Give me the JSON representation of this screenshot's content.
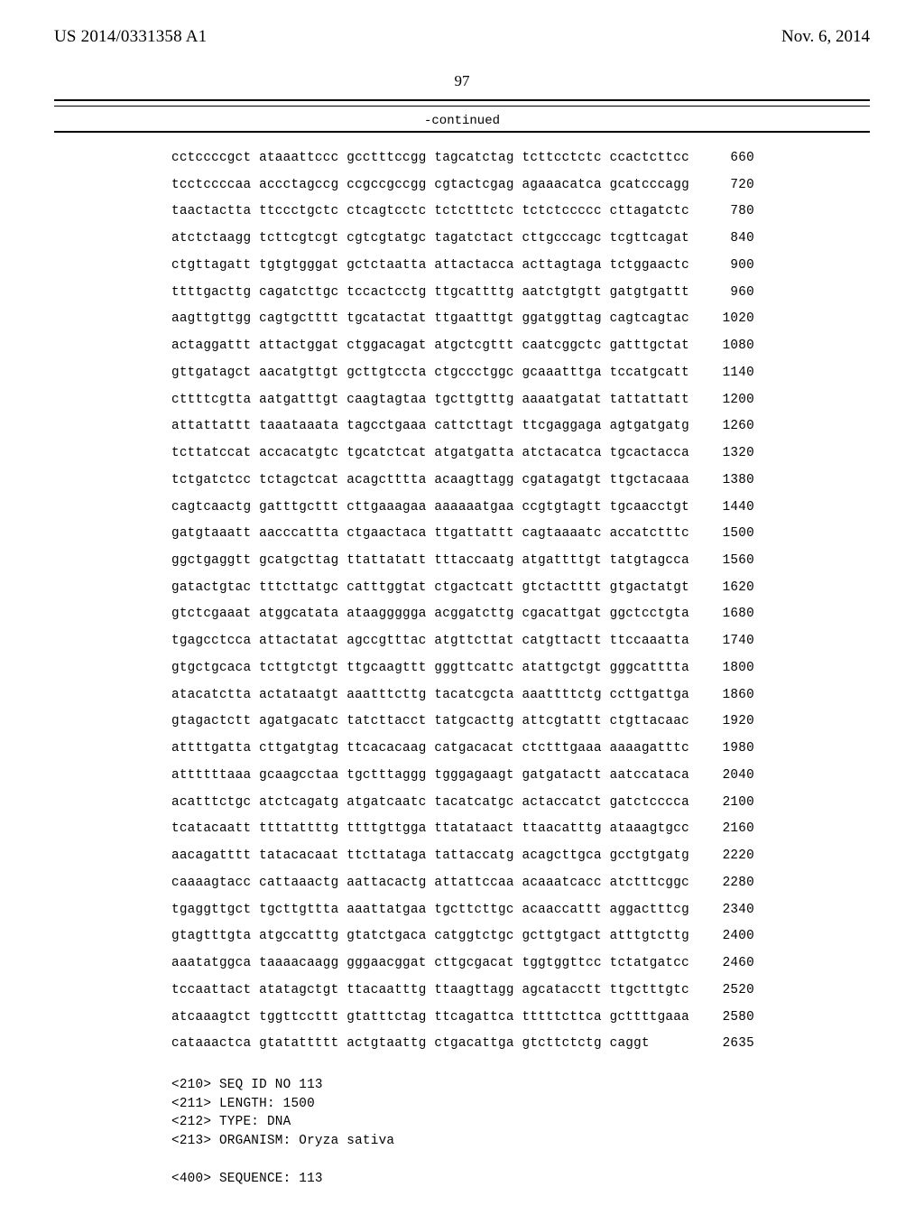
{
  "header": {
    "pub_no": "US 2014/0331358 A1",
    "pub_date": "Nov. 6, 2014",
    "page_number": "97",
    "continued": "-continued"
  },
  "sequence": {
    "rows": [
      {
        "g": [
          "cctccccgct",
          "ataaattccc",
          "gcctttccgg",
          "tagcatctag",
          "tcttcctctc",
          "ccactcttcc"
        ],
        "n": 660
      },
      {
        "g": [
          "tcctccccaa",
          "accctagccg",
          "ccgccgccgg",
          "cgtactcgag",
          "agaaacatca",
          "gcatcccagg"
        ],
        "n": 720
      },
      {
        "g": [
          "taactactta",
          "ttccctgctc",
          "ctcagtcctc",
          "tctctttctc",
          "tctctccccc",
          "cttagatctc"
        ],
        "n": 780
      },
      {
        "g": [
          "atctctaagg",
          "tcttcgtcgt",
          "cgtcgtatgc",
          "tagatctact",
          "cttgcccagc",
          "tcgttcagat"
        ],
        "n": 840
      },
      {
        "g": [
          "ctgttagatt",
          "tgtgtgggat",
          "gctctaatta",
          "attactacca",
          "acttagtaga",
          "tctggaactc"
        ],
        "n": 900
      },
      {
        "g": [
          "ttttgacttg",
          "cagatcttgc",
          "tccactcctg",
          "ttgcattttg",
          "aatctgtgtt",
          "gatgtgattt"
        ],
        "n": 960
      },
      {
        "g": [
          "aagttgttgg",
          "cagtgctttt",
          "tgcatactat",
          "ttgaatttgt",
          "ggatggttag",
          "cagtcagtac"
        ],
        "n": 1020
      },
      {
        "g": [
          "actaggattt",
          "attactggat",
          "ctggacagat",
          "atgctcgttt",
          "caatcggctc",
          "gatttgctat"
        ],
        "n": 1080
      },
      {
        "g": [
          "gttgatagct",
          "aacatgttgt",
          "gcttgtccta",
          "ctgccctggc",
          "gcaaatttga",
          "tccatgcatt"
        ],
        "n": 1140
      },
      {
        "g": [
          "cttttcgtta",
          "aatgatttgt",
          "caagtagtaa",
          "tgcttgtttg",
          "aaaatgatat",
          "tattattatt"
        ],
        "n": 1200
      },
      {
        "g": [
          "attattattt",
          "taaataaata",
          "tagcctgaaa",
          "cattcttagt",
          "ttcgaggaga",
          "agtgatgatg"
        ],
        "n": 1260
      },
      {
        "g": [
          "tcttatccat",
          "accacatgtc",
          "tgcatctcat",
          "atgatgatta",
          "atctacatca",
          "tgcactacca"
        ],
        "n": 1320
      },
      {
        "g": [
          "tctgatctcc",
          "tctagctcat",
          "acagctttta",
          "acaagttagg",
          "cgatagatgt",
          "ttgctacaaa"
        ],
        "n": 1380
      },
      {
        "g": [
          "cagtcaactg",
          "gatttgcttt",
          "cttgaaagaa",
          "aaaaaatgaa",
          "ccgtgtagtt",
          "tgcaacctgt"
        ],
        "n": 1440
      },
      {
        "g": [
          "gatgtaaatt",
          "aacccattta",
          "ctgaactaca",
          "ttgattattt",
          "cagtaaaatc",
          "accatctttc"
        ],
        "n": 1500
      },
      {
        "g": [
          "ggctgaggtt",
          "gcatgcttag",
          "ttattatatt",
          "tttaccaatg",
          "atgattttgt",
          "tatgtagcca"
        ],
        "n": 1560
      },
      {
        "g": [
          "gatactgtac",
          "tttcttatgc",
          "catttggtat",
          "ctgactcatt",
          "gtctactttt",
          "gtgactatgt"
        ],
        "n": 1620
      },
      {
        "g": [
          "gtctcgaaat",
          "atggcatata",
          "ataaggggga",
          "acggatcttg",
          "cgacattgat",
          "ggctcctgta"
        ],
        "n": 1680
      },
      {
        "g": [
          "tgagcctcca",
          "attactatat",
          "agccgtttac",
          "atgttcttat",
          "catgttactt",
          "ttccaaatta"
        ],
        "n": 1740
      },
      {
        "g": [
          "gtgctgcaca",
          "tcttgtctgt",
          "ttgcaagttt",
          "gggttcattc",
          "atattgctgt",
          "gggcatttta"
        ],
        "n": 1800
      },
      {
        "g": [
          "atacatctta",
          "actataatgt",
          "aaatttcttg",
          "tacatcgcta",
          "aaattttctg",
          "ccttgattga"
        ],
        "n": 1860
      },
      {
        "g": [
          "gtagactctt",
          "agatgacatc",
          "tatcttacct",
          "tatgcacttg",
          "attcgtattt",
          "ctgttacaac"
        ],
        "n": 1920
      },
      {
        "g": [
          "attttgatta",
          "cttgatgtag",
          "ttcacacaag",
          "catgacacat",
          "ctctttgaaa",
          "aaaagatttc"
        ],
        "n": 1980
      },
      {
        "g": [
          "attttttaaa",
          "gcaagcctaa",
          "tgctttaggg",
          "tgggagaagt",
          "gatgatactt",
          "aatccataca"
        ],
        "n": 2040
      },
      {
        "g": [
          "acatttctgc",
          "atctcagatg",
          "atgatcaatc",
          "tacatcatgc",
          "actaccatct",
          "gatctcccca"
        ],
        "n": 2100
      },
      {
        "g": [
          "tcatacaatt",
          "ttttattttg",
          "ttttgttgga",
          "ttatataact",
          "ttaacatttg",
          "ataaagtgcc"
        ],
        "n": 2160
      },
      {
        "g": [
          "aacagatttt",
          "tatacacaat",
          "ttcttataga",
          "tattaccatg",
          "acagcttgca",
          "gcctgtgatg"
        ],
        "n": 2220
      },
      {
        "g": [
          "caaaagtacc",
          "cattaaactg",
          "aattacactg",
          "attattccaa",
          "acaaatcacc",
          "atctttcggc"
        ],
        "n": 2280
      },
      {
        "g": [
          "tgaggttgct",
          "tgcttgttta",
          "aaattatgaa",
          "tgcttcttgc",
          "acaaccattt",
          "aggactttcg"
        ],
        "n": 2340
      },
      {
        "g": [
          "gtagtttgta",
          "atgccatttg",
          "gtatctgaca",
          "catggtctgc",
          "gcttgtgact",
          "atttgtcttg"
        ],
        "n": 2400
      },
      {
        "g": [
          "aaatatggca",
          "taaaacaagg",
          "gggaacggat",
          "cttgcgacat",
          "tggtggttcc",
          "tctatgatcc"
        ],
        "n": 2460
      },
      {
        "g": [
          "tccaattact",
          "atatagctgt",
          "ttacaatttg",
          "ttaagttagg",
          "agcatacctt",
          "ttgctttgtc"
        ],
        "n": 2520
      },
      {
        "g": [
          "atcaaagtct",
          "tggttccttt",
          "gtatttctag",
          "ttcagattca",
          "tttttcttca",
          "gcttttgaaa"
        ],
        "n": 2580
      },
      {
        "g": [
          "cataaactca",
          "gtatattttt",
          "actgtaattg",
          "ctgacattga",
          "gtcttctctg",
          "caggt"
        ],
        "n": 2635
      }
    ]
  },
  "meta": {
    "lines": [
      "<210> SEQ ID NO 113",
      "<211> LENGTH: 1500",
      "<212> TYPE: DNA",
      "<213> ORGANISM: Oryza sativa",
      "",
      "<400> SEQUENCE: 113"
    ]
  }
}
